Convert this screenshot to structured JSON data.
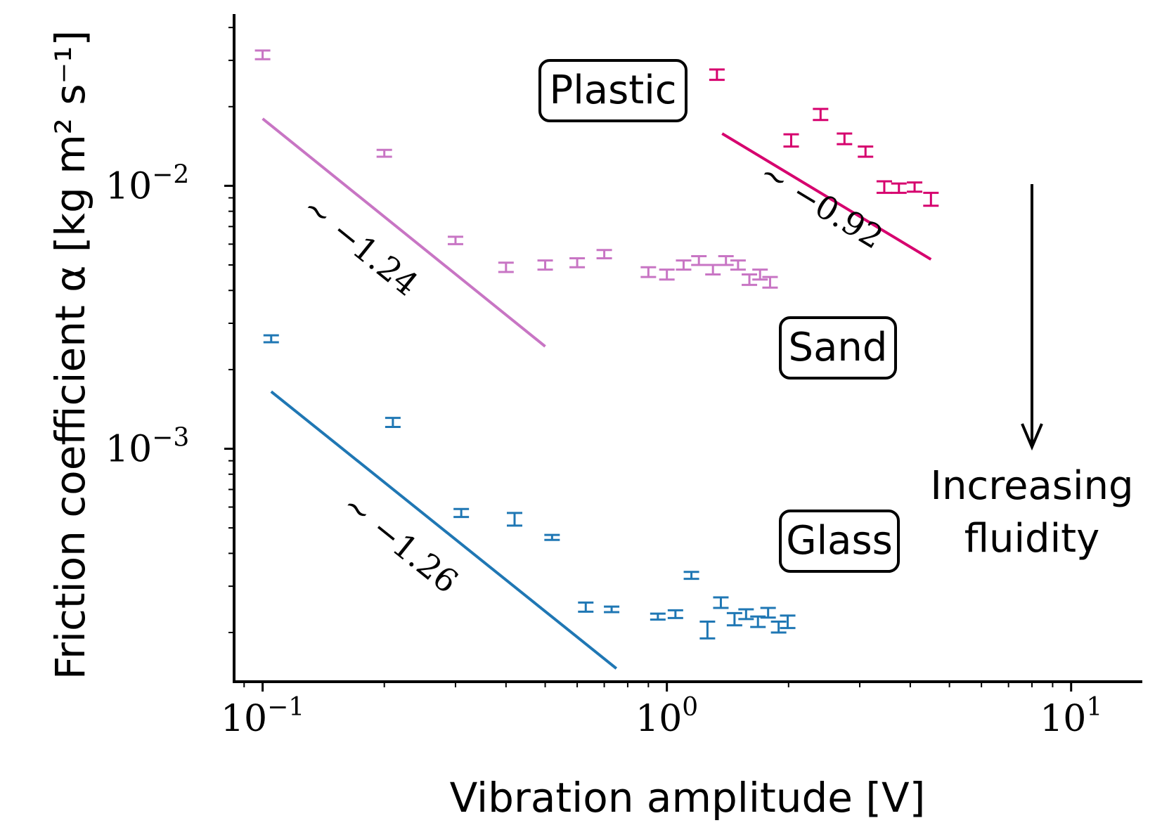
{
  "chart_data": {
    "type": "scatter",
    "xlabel": "Vibration amplitude [V]",
    "ylabel": "Friction coefficient α [kg m² s⁻¹]",
    "x_scale": "log",
    "y_scale": "log",
    "xlim": [
      0.085,
      15
    ],
    "ylim": [
      0.00013,
      0.045
    ],
    "x_ticks": [
      {
        "value": 0.1,
        "base": "10",
        "exp": "−1"
      },
      {
        "value": 1,
        "base": "10",
        "exp": "0"
      },
      {
        "value": 10,
        "base": "10",
        "exp": "1"
      }
    ],
    "y_ticks": [
      {
        "value": 0.001,
        "base": "10",
        "exp": "−3"
      },
      {
        "value": 0.01,
        "base": "10",
        "exp": "−2"
      }
    ],
    "grid": false,
    "series": [
      {
        "name": "Plastic",
        "color": "#d6006e",
        "points": [
          {
            "x": 1.33,
            "y": 0.0265,
            "err": 0.0012
          },
          {
            "x": 2.03,
            "y": 0.0149,
            "err": 0.0008
          },
          {
            "x": 2.4,
            "y": 0.0187,
            "err": 0.0009
          },
          {
            "x": 2.75,
            "y": 0.0151,
            "err": 0.0007
          },
          {
            "x": 3.1,
            "y": 0.0135,
            "err": 0.0006
          },
          {
            "x": 3.45,
            "y": 0.0099,
            "err": 0.0005
          },
          {
            "x": 3.75,
            "y": 0.0098,
            "err": 0.0004
          },
          {
            "x": 4.1,
            "y": 0.0099,
            "err": 0.0004
          },
          {
            "x": 4.5,
            "y": 0.0089,
            "err": 0.0005
          }
        ],
        "fit": {
          "slope_label": "∼ −0.92",
          "x": [
            1.37,
            4.5
          ],
          "y": [
            0.0158,
            0.00525
          ]
        }
      },
      {
        "name": "Sand",
        "color": "#c875c4",
        "points": [
          {
            "x": 0.1,
            "y": 0.0315,
            "err": 0.0012
          },
          {
            "x": 0.2,
            "y": 0.0133,
            "err": 0.0004
          },
          {
            "x": 0.3,
            "y": 0.0062,
            "err": 0.0002
          },
          {
            "x": 0.4,
            "y": 0.0049,
            "err": 0.0002
          },
          {
            "x": 0.5,
            "y": 0.005,
            "err": 0.0002
          },
          {
            "x": 0.6,
            "y": 0.0051,
            "err": 0.0002
          },
          {
            "x": 0.7,
            "y": 0.0055,
            "err": 0.0002
          },
          {
            "x": 0.9,
            "y": 0.0047,
            "err": 0.0002
          },
          {
            "x": 1.0,
            "y": 0.0046,
            "err": 0.0002
          },
          {
            "x": 1.1,
            "y": 0.005,
            "err": 0.0002
          },
          {
            "x": 1.2,
            "y": 0.0052,
            "err": 0.0002
          },
          {
            "x": 1.3,
            "y": 0.0048,
            "err": 0.0002
          },
          {
            "x": 1.4,
            "y": 0.0052,
            "err": 0.0002
          },
          {
            "x": 1.5,
            "y": 0.005,
            "err": 0.0002
          },
          {
            "x": 1.6,
            "y": 0.0044,
            "err": 0.0002
          },
          {
            "x": 1.7,
            "y": 0.0046,
            "err": 0.0002
          },
          {
            "x": 1.8,
            "y": 0.0043,
            "err": 0.0002
          }
        ],
        "fit": {
          "slope_label": "∼ −1.24",
          "x": [
            0.1,
            0.5
          ],
          "y": [
            0.018,
            0.00245
          ]
        }
      },
      {
        "name": "Glass",
        "color": "#1f77b4",
        "points": [
          {
            "x": 0.105,
            "y": 0.00262,
            "err": 8e-05
          },
          {
            "x": 0.21,
            "y": 0.00126,
            "err": 5e-05
          },
          {
            "x": 0.31,
            "y": 0.00057,
            "err": 2e-05
          },
          {
            "x": 0.42,
            "y": 0.00054,
            "err": 3e-05
          },
          {
            "x": 0.52,
            "y": 0.00046,
            "err": 1e-05
          },
          {
            "x": 0.63,
            "y": 0.00025,
            "err": 1e-05
          },
          {
            "x": 0.73,
            "y": 0.000245,
            "err": 6e-06
          },
          {
            "x": 0.95,
            "y": 0.00023,
            "err": 6e-06
          },
          {
            "x": 1.05,
            "y": 0.000235,
            "err": 8e-06
          },
          {
            "x": 1.15,
            "y": 0.00033,
            "err": 1e-05
          },
          {
            "x": 1.26,
            "y": 0.000205,
            "err": 1.5e-05
          },
          {
            "x": 1.36,
            "y": 0.00026,
            "err": 1.2e-05
          },
          {
            "x": 1.47,
            "y": 0.000225,
            "err": 1.2e-05
          },
          {
            "x": 1.57,
            "y": 0.000235,
            "err": 1e-05
          },
          {
            "x": 1.68,
            "y": 0.00022,
            "err": 1e-05
          },
          {
            "x": 1.78,
            "y": 0.000238,
            "err": 1e-05
          },
          {
            "x": 1.89,
            "y": 0.00021,
            "err": 1e-05
          },
          {
            "x": 1.99,
            "y": 0.00022,
            "err": 1.2e-05
          }
        ],
        "fit": {
          "slope_label": "∼ −1.26",
          "x": [
            0.105,
            0.75
          ],
          "y": [
            0.00165,
            0.000146
          ]
        }
      }
    ],
    "annotations": {
      "fluidity_line1": "Increasing",
      "fluidity_line2": "fluidity"
    }
  }
}
